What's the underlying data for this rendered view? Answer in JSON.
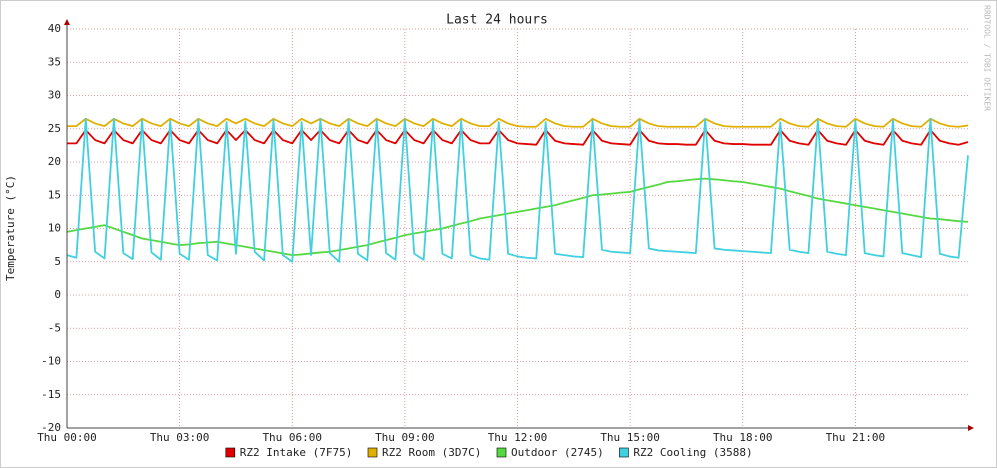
{
  "chart_data": {
    "type": "line",
    "title": "Last 24 hours",
    "y_label": "Temperature (°C)",
    "watermark": "RRDTOOL / TOBI OETIKER",
    "grid": true,
    "xlim": [
      0,
      24
    ],
    "ylim": [
      -20,
      40
    ],
    "yticks": [
      -20,
      -15,
      -10,
      -5,
      0,
      5,
      10,
      15,
      20,
      25,
      30,
      35,
      40
    ],
    "xticks": [
      {
        "value": 0,
        "label": "Thu 00:00"
      },
      {
        "value": 3,
        "label": "Thu 03:00"
      },
      {
        "value": 6,
        "label": "Thu 06:00"
      },
      {
        "value": 9,
        "label": "Thu 09:00"
      },
      {
        "value": 12,
        "label": "Thu 12:00"
      },
      {
        "value": 15,
        "label": "Thu 15:00"
      },
      {
        "value": 18,
        "label": "Thu 18:00"
      },
      {
        "value": 21,
        "label": "Thu 21:00"
      }
    ],
    "x": [
      0,
      0.25,
      0.5,
      0.75,
      1,
      1.25,
      1.5,
      1.75,
      2,
      2.25,
      2.5,
      2.75,
      3,
      3.25,
      3.5,
      3.75,
      4,
      4.25,
      4.5,
      4.75,
      5,
      5.25,
      5.5,
      5.75,
      6,
      6.25,
      6.5,
      6.75,
      7,
      7.25,
      7.5,
      7.75,
      8,
      8.25,
      8.5,
      8.75,
      9,
      9.25,
      9.5,
      9.75,
      10,
      10.25,
      10.5,
      10.75,
      11,
      11.25,
      11.5,
      11.75,
      12,
      12.25,
      12.5,
      12.75,
      13,
      13.25,
      13.5,
      13.75,
      14,
      14.25,
      14.5,
      14.75,
      15,
      15.25,
      15.5,
      15.75,
      16,
      16.25,
      16.5,
      16.75,
      17,
      17.25,
      17.5,
      17.75,
      18,
      18.25,
      18.5,
      18.75,
      19,
      19.25,
      19.5,
      19.75,
      20,
      20.25,
      20.5,
      20.75,
      21,
      21.25,
      21.5,
      21.75,
      22,
      22.25,
      22.5,
      22.75,
      23,
      23.25,
      23.5,
      23.75,
      24
    ],
    "series": [
      {
        "name": "RZ2 Intake (7F75)",
        "color": "#e00000",
        "values": [
          22.8,
          22.8,
          24.8,
          23.3,
          22.8,
          24.8,
          23.3,
          22.8,
          24.8,
          23.3,
          22.8,
          24.8,
          23.3,
          22.8,
          24.8,
          23.3,
          22.8,
          24.8,
          23.3,
          24.8,
          23.3,
          22.8,
          24.8,
          23.3,
          22.8,
          24.8,
          23.3,
          24.8,
          23.3,
          22.8,
          24.8,
          23.3,
          22.8,
          24.8,
          23.3,
          22.8,
          24.8,
          23.3,
          22.8,
          24.8,
          23.3,
          22.8,
          24.8,
          23.3,
          22.8,
          22.8,
          24.8,
          23.3,
          22.8,
          22.7,
          22.6,
          24.8,
          23.2,
          22.8,
          22.7,
          22.6,
          24.8,
          23.2,
          22.8,
          22.7,
          22.6,
          24.8,
          23.2,
          22.8,
          22.7,
          22.7,
          22.6,
          22.6,
          24.8,
          23.2,
          22.8,
          22.7,
          22.7,
          22.6,
          22.6,
          22.6,
          24.8,
          23.2,
          22.8,
          22.6,
          24.8,
          23.2,
          22.8,
          22.6,
          24.8,
          23.2,
          22.8,
          22.6,
          24.8,
          23.2,
          22.8,
          22.6,
          24.8,
          23.2,
          22.8,
          22.6,
          23.0
        ]
      },
      {
        "name": "RZ2 Room (3D7C)",
        "color": "#e0b000",
        "values": [
          25.4,
          25.4,
          26.5,
          25.8,
          25.4,
          26.5,
          25.8,
          25.4,
          26.5,
          25.8,
          25.4,
          26.5,
          25.8,
          25.4,
          26.5,
          25.8,
          25.4,
          26.5,
          25.8,
          26.5,
          25.8,
          25.4,
          26.5,
          25.8,
          25.4,
          26.5,
          25.8,
          26.5,
          25.8,
          25.4,
          26.5,
          25.8,
          25.4,
          26.5,
          25.8,
          25.4,
          26.5,
          25.8,
          25.4,
          26.5,
          25.8,
          25.4,
          26.5,
          25.8,
          25.4,
          25.4,
          26.5,
          25.8,
          25.4,
          25.3,
          25.3,
          26.5,
          25.8,
          25.4,
          25.3,
          25.3,
          26.5,
          25.8,
          25.4,
          25.3,
          25.3,
          26.5,
          25.8,
          25.4,
          25.3,
          25.3,
          25.3,
          25.3,
          26.5,
          25.8,
          25.4,
          25.3,
          25.3,
          25.3,
          25.3,
          25.3,
          26.5,
          25.8,
          25.4,
          25.3,
          26.5,
          25.8,
          25.4,
          25.3,
          26.5,
          25.8,
          25.4,
          25.3,
          26.5,
          25.8,
          25.4,
          25.3,
          26.5,
          25.8,
          25.4,
          25.3,
          25.5
        ]
      },
      {
        "name": "Outdoor (2745)",
        "color": "#55d840",
        "values": [
          9.5,
          9.75,
          10,
          10.25,
          10.5,
          10,
          9.5,
          9,
          8.5,
          8.25,
          8,
          7.75,
          7.5,
          7.6,
          7.8,
          7.9,
          8,
          7.75,
          7.5,
          7.25,
          7,
          6.75,
          6.5,
          6.25,
          6,
          6.1,
          6.25,
          6.4,
          6.5,
          6.75,
          7,
          7.25,
          7.5,
          7.9,
          8.25,
          8.6,
          9,
          9.25,
          9.5,
          9.75,
          10,
          10.4,
          10.75,
          11.1,
          11.5,
          11.75,
          12,
          12.25,
          12.5,
          12.75,
          13,
          13.25,
          13.5,
          13.9,
          14.25,
          14.6,
          15,
          15.1,
          15.25,
          15.4,
          15.5,
          15.9,
          16.25,
          16.6,
          17,
          17.1,
          17.25,
          17.4,
          17.5,
          17.4,
          17.25,
          17.1,
          17,
          16.75,
          16.5,
          16.25,
          16,
          15.6,
          15.25,
          14.9,
          14.5,
          14.25,
          14,
          13.75,
          13.5,
          13.25,
          13,
          12.75,
          12.5,
          12.25,
          12,
          11.75,
          11.5,
          11.4,
          11.25,
          11.1,
          11
        ]
      },
      {
        "name": "RZ2 Cooling (3588)",
        "color": "#40d0e0",
        "values": [
          6.0,
          5.6,
          26.5,
          6.5,
          5.5,
          26.5,
          6.3,
          5.4,
          26.3,
          6.4,
          5.3,
          26.2,
          6.2,
          5.3,
          26.4,
          6.0,
          5.2,
          26.0,
          6.2,
          26.1,
          6.5,
          5.2,
          26.3,
          6.0,
          5.0,
          26.0,
          6.0,
          26.5,
          6.3,
          5.0,
          26.4,
          6.2,
          5.2,
          26.3,
          6.3,
          5.3,
          26.4,
          6.2,
          5.3,
          26.2,
          6.2,
          5.5,
          26.2,
          6.0,
          5.5,
          5.3,
          26.0,
          6.2,
          5.8,
          5.6,
          5.5,
          26.0,
          6.2,
          6.0,
          5.8,
          5.7,
          26.2,
          6.8,
          6.5,
          6.4,
          6.3,
          26.3,
          7.0,
          6.7,
          6.6,
          6.5,
          6.4,
          6.3,
          26.5,
          7.0,
          6.8,
          6.7,
          6.6,
          6.5,
          6.4,
          6.3,
          26.0,
          6.8,
          6.5,
          6.3,
          26.3,
          6.5,
          6.2,
          6.0,
          26.2,
          6.3,
          6.0,
          5.8,
          26.3,
          6.3,
          6.0,
          5.7,
          26.5,
          6.2,
          5.8,
          5.6,
          21.0
        ]
      }
    ]
  }
}
